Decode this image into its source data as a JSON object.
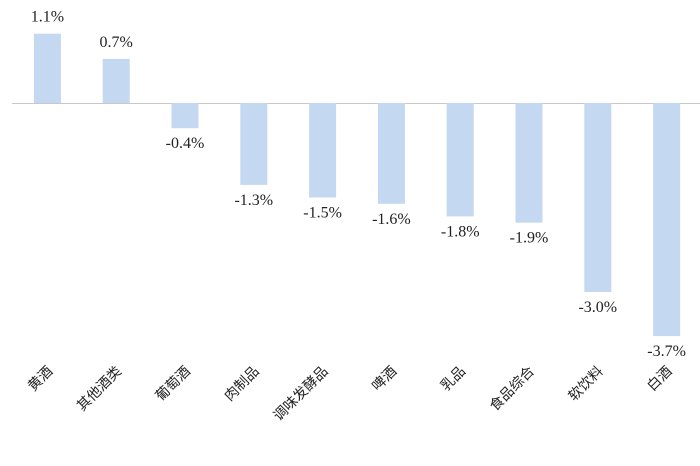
{
  "chart_data": {
    "type": "bar",
    "categories": [
      "黄酒",
      "其他酒类",
      "葡萄酒",
      "肉制品",
      "调味发酵品",
      "啤酒",
      "乳品",
      "食品综合",
      "软饮料",
      "白酒"
    ],
    "values": [
      1.1,
      0.7,
      -0.4,
      -1.3,
      -1.5,
      -1.6,
      -1.8,
      -1.9,
      -3.0,
      -3.7
    ],
    "value_labels": [
      "1.1%",
      "0.7%",
      "-0.4%",
      "-1.3%",
      "-1.5%",
      "-1.6%",
      "-1.8%",
      "-1.9%",
      "-3.0%",
      "-3.7%"
    ],
    "title": "",
    "xlabel": "",
    "ylabel": "",
    "ylim": [
      -3.7,
      1.1
    ],
    "grid": false,
    "legend": "none",
    "bar_color": "#c5d8f1"
  }
}
